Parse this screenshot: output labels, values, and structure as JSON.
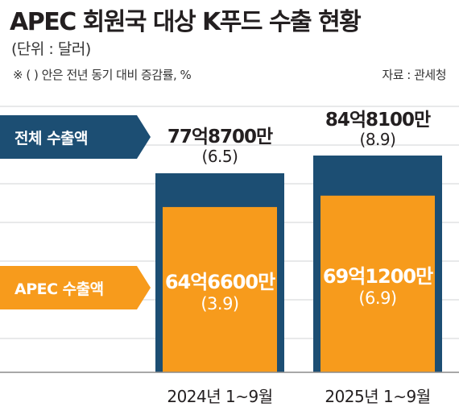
{
  "header": {
    "title": "APEC 회원국 대상 K푸드 수출 현황",
    "unit": "(단위 : 달러)",
    "note": "※ (  ) 안은 전년 동기 대비 증감률, %",
    "source": "자료 : 관세청"
  },
  "legend": {
    "total": "전체 수출액",
    "apec": "APEC 수출액"
  },
  "colors": {
    "total": "#1c4e73",
    "apec": "#f79b1c",
    "grid": "#d1d3d4",
    "baseline": "#8c8c8c"
  },
  "chart_data": {
    "type": "bar",
    "categories": [
      "2024년 1~9월",
      "2025년 1~9월"
    ],
    "series": [
      {
        "name": "전체 수출액",
        "values": [
          7787000000,
          8481000000
        ],
        "labels": [
          "77억8700만",
          "84억8100만"
        ],
        "growth": [
          "(6.5)",
          "(8.9)"
        ]
      },
      {
        "name": "APEC 수출액",
        "values": [
          6466000000,
          6912000000
        ],
        "labels": [
          "64억6600만",
          "69억1200만"
        ],
        "growth": [
          "(3.9)",
          "(6.9)"
        ]
      }
    ],
    "grid": true
  }
}
